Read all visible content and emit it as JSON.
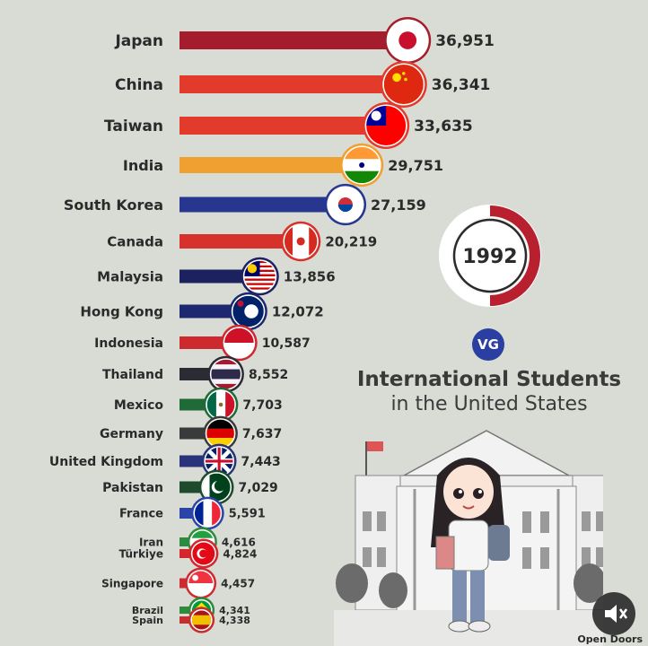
{
  "chart_data": {
    "type": "bar",
    "orientation": "horizontal",
    "title": "International Students",
    "subtitle": "in the United States",
    "year": "1992",
    "year_progress": 0.5,
    "source": "Open Doors",
    "logo_text": "VG",
    "categories": [
      "Japan",
      "China",
      "Taiwan",
      "India",
      "South Korea",
      "Canada",
      "Malaysia",
      "Hong Kong",
      "Indonesia",
      "Thailand",
      "Mexico",
      "Germany",
      "United Kingdom",
      "Pakistan",
      "France",
      "Iran",
      "Türkiye",
      "Singapore",
      "Brazil",
      "Spain"
    ],
    "values": [
      36951,
      36341,
      33635,
      29751,
      27159,
      20219,
      13856,
      12072,
      10587,
      8552,
      7703,
      7637,
      7443,
      7029,
      5591,
      4616,
      4824,
      4457,
      4341,
      4338
    ],
    "value_labels": [
      "36,951",
      "36,341",
      "33,635",
      "29,751",
      "27,159",
      "20,219",
      "13,856",
      "12,072",
      "10,587",
      "8,552",
      "7,703",
      "7,637",
      "7,443",
      "7,029",
      "5,591",
      "4,616",
      "4,824",
      "4,457",
      "4,341",
      "4,338"
    ],
    "colors": [
      "#a51d2d",
      "#e23a2b",
      "#e23a2b",
      "#f0a030",
      "#27378f",
      "#d6322b",
      "#1c2260",
      "#1e2870",
      "#cc2a2f",
      "#2b2b33",
      "#1f6a37",
      "#3a3a3a",
      "#28337a",
      "#1e4a2e",
      "#2a44a8",
      "#2d8a3e",
      "#d4262c",
      "#cf2a2f",
      "#2f8a3c",
      "#c82e2e"
    ],
    "flags": [
      "flag-japan",
      "flag-china",
      "flag-taiwan",
      "flag-india",
      "flag-south-korea",
      "flag-canada",
      "flag-malaysia",
      "flag-hong-kong",
      "flag-indonesia",
      "flag-thailand",
      "flag-mexico",
      "flag-germany",
      "flag-united-kingdom",
      "flag-pakistan",
      "flag-france",
      "flag-iran",
      "flag-turkiye",
      "flag-singapore",
      "flag-brazil",
      "flag-spain"
    ]
  },
  "theme": {
    "background": "#d8dcd5",
    "ring_color": "#b8202f"
  }
}
